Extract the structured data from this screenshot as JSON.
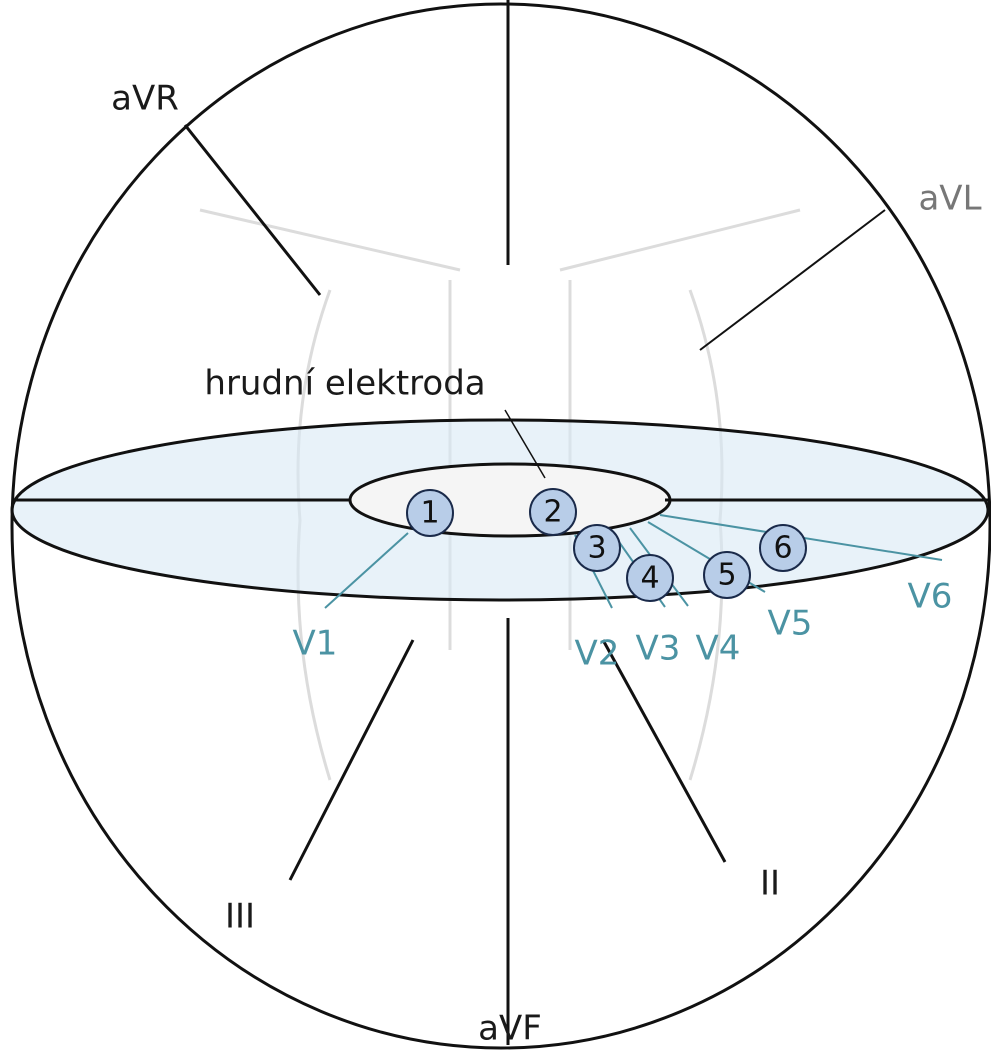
{
  "limb_leads": [
    {
      "label": "aVR"
    },
    {
      "label": "aVL"
    },
    {
      "label": "III"
    },
    {
      "label": "aVF"
    },
    {
      "label": "II"
    }
  ],
  "chest_label": "hrudní elektroda",
  "electrodes": [
    {
      "number": "1",
      "lead": "V1"
    },
    {
      "number": "2",
      "lead": "V2"
    },
    {
      "number": "3",
      "lead": "V3"
    },
    {
      "number": "4",
      "lead": "V4"
    },
    {
      "number": "5",
      "lead": "V5"
    },
    {
      "number": "6",
      "lead": "V6"
    }
  ]
}
